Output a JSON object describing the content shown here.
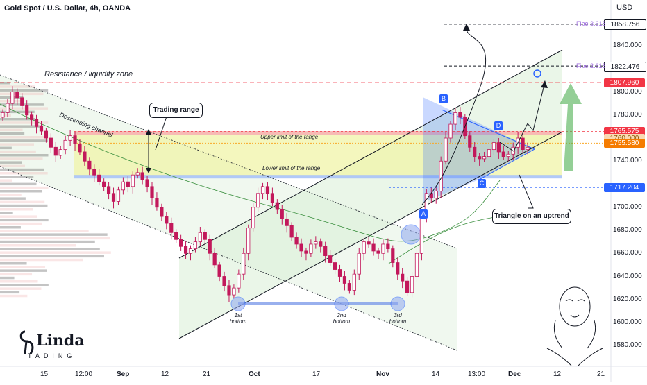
{
  "header": {
    "title": "Gold Spot / U.S. Dollar, 4h, OANDA",
    "currency": "USD"
  },
  "chart_data": {
    "type": "candlestick",
    "title": "Gold Spot / U.S. Dollar, 4h, OANDA",
    "ylim": [
      1575,
      1890
    ],
    "y_ticks": [
      "1860.000",
      "1840.000",
      "1800.000",
      "1780.000",
      "1740.000",
      "1700.000",
      "1680.000",
      "1660.000",
      "1640.000",
      "1620.000",
      "1600.000",
      "1580.000"
    ],
    "x_ticks": [
      {
        "label": "15",
        "bold": false
      },
      {
        "label": "12:00",
        "bold": false
      },
      {
        "label": "Sep",
        "bold": true
      },
      {
        "label": "12",
        "bold": false
      },
      {
        "label": "21",
        "bold": false
      },
      {
        "label": "Oct",
        "bold": true
      },
      {
        "label": "17",
        "bold": false
      },
      {
        "label": "Nov",
        "bold": true
      },
      {
        "label": "14",
        "bold": false
      },
      {
        "label": "13:00",
        "bold": false
      },
      {
        "label": "Dec",
        "bold": true
      },
      {
        "label": "12",
        "bold": false
      },
      {
        "label": "21",
        "bold": false
      }
    ],
    "price_closes": [
      1782,
      1790,
      1800,
      1795,
      1788,
      1780,
      1776,
      1770,
      1766,
      1760,
      1752,
      1745,
      1750,
      1758,
      1762,
      1755,
      1748,
      1740,
      1733,
      1728,
      1722,
      1718,
      1712,
      1705,
      1715,
      1722,
      1718,
      1728,
      1730,
      1724,
      1718,
      1708,
      1700,
      1692,
      1686,
      1678,
      1672,
      1666,
      1660,
      1664,
      1670,
      1678,
      1672,
      1660,
      1650,
      1640,
      1632,
      1624,
      1630,
      1642,
      1660,
      1682,
      1700,
      1712,
      1718,
      1712,
      1704,
      1698,
      1690,
      1684,
      1674,
      1668,
      1662,
      1660,
      1668,
      1670,
      1666,
      1658,
      1652,
      1646,
      1640,
      1634,
      1628,
      1642,
      1660,
      1670,
      1668,
      1662,
      1660,
      1668,
      1664,
      1652,
      1642,
      1636,
      1626,
      1640,
      1660,
      1690,
      1712,
      1708,
      1714,
      1740,
      1760,
      1772,
      1782,
      1778,
      1762,
      1752,
      1744,
      1742,
      1744,
      1750,
      1756,
      1748,
      1744,
      1746,
      1752,
      1760,
      1750,
      1752
    ],
    "levels": [
      {
        "value": 1858.756,
        "label": "1858.756",
        "fibo": "Fibo 3.618"
      },
      {
        "value": 1822.476,
        "label": "1822.476",
        "fibo": "Fibo 2.618"
      },
      {
        "value": 1807.96,
        "label": "1807.960",
        "name": "Resistance / liquidity zone"
      },
      {
        "value": 1765.575,
        "label": "1765.575"
      },
      {
        "value": 1760.0,
        "label": "1760.000"
      },
      {
        "value": 1755.58,
        "label": "1755.580"
      },
      {
        "value": 1717.204,
        "label": "1717.204"
      }
    ],
    "annotations": {
      "trading_range": "Trading range",
      "descending_channel": "Descending channel",
      "upper_limit": "Upper limit of the range",
      "lower_limit": "Lower limit of the range",
      "triangle": "Triangle on an uptrend",
      "resistance": "Resistance / liquidity zone",
      "bottoms": [
        "1st\nbottom",
        "2nd\nbottom",
        "3rd\nbottom"
      ],
      "points": [
        "A",
        "B",
        "C",
        "D"
      ]
    },
    "colors": {
      "up": "#26a69a",
      "down": "#ef5350",
      "candle": "#c2185b",
      "resistance": "#f23645",
      "range_fill": "#f0f4a8",
      "channel": "#2962ff",
      "triangle": "#2962ff",
      "green_arrow": "#4caf50"
    },
    "grid": false,
    "legend": "none"
  },
  "logo": {
    "name": "Linda Trading"
  }
}
